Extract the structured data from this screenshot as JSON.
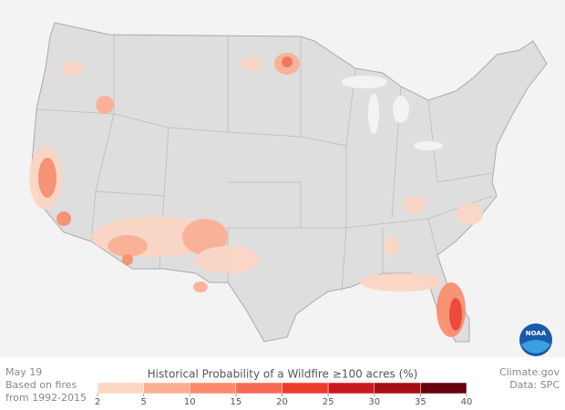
{
  "header": {
    "date": "May 19",
    "note_lines": [
      "Based on fires",
      "from 1992-2015"
    ],
    "credit": "Climate.gov",
    "source": "Data: SPC",
    "logo": "NOAA"
  },
  "legend": {
    "title": "Historical Probability of a Wildfire ≥100 acres (%)",
    "ticks": [
      2,
      5,
      10,
      15,
      20,
      25,
      30,
      35,
      40
    ],
    "colors": [
      "#fdd5c3",
      "#fcae91",
      "#fb8a6a",
      "#f76a52",
      "#ef3b2c",
      "#cb181d",
      "#a50f15",
      "#67000d"
    ]
  }
}
